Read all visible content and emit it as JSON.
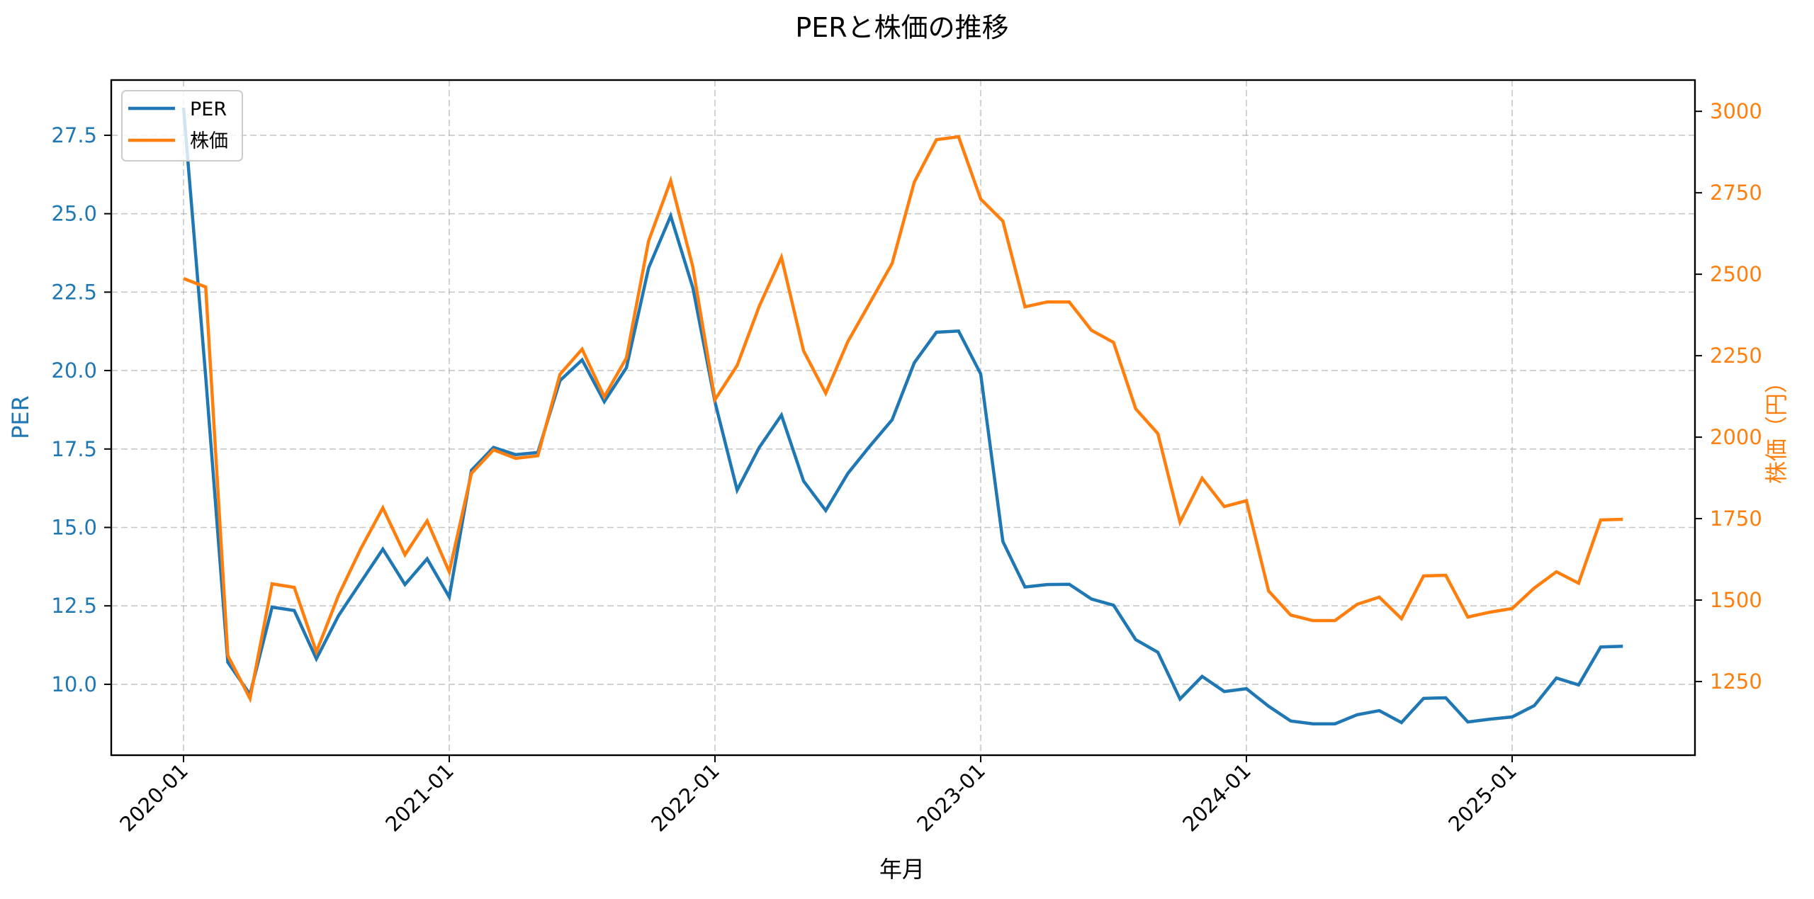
{
  "chart_data": {
    "type": "line",
    "title": "PERと株価の推移",
    "xlabel": "年月",
    "ylabel": "PER",
    "ylabel_right": "株価（円）",
    "grid": true,
    "legend_position": "upper left",
    "x": [
      "2020-01",
      "2020-02",
      "2020-03",
      "2020-04",
      "2020-05",
      "2020-06",
      "2020-07",
      "2020-08",
      "2020-09",
      "2020-10",
      "2020-11",
      "2020-12",
      "2021-01",
      "2021-02",
      "2021-03",
      "2021-04",
      "2021-05",
      "2021-06",
      "2021-07",
      "2021-08",
      "2021-09",
      "2021-10",
      "2021-11",
      "2021-12",
      "2022-01",
      "2022-02",
      "2022-03",
      "2022-04",
      "2022-05",
      "2022-06",
      "2022-07",
      "2022-08",
      "2022-09",
      "2022-10",
      "2022-11",
      "2022-12",
      "2023-01",
      "2023-02",
      "2023-03",
      "2023-04",
      "2023-05",
      "2023-06",
      "2023-07",
      "2023-08",
      "2023-09",
      "2023-10",
      "2023-11",
      "2023-12",
      "2024-01",
      "2024-02",
      "2024-03",
      "2024-04",
      "2024-05",
      "2024-06",
      "2024-07",
      "2024-08",
      "2024-09",
      "2024-10",
      "2024-11",
      "2024-12",
      "2025-01",
      "2025-02",
      "2025-03",
      "2025-04",
      "2025-05",
      "2025-06"
    ],
    "x_ticks": [
      "2020-01",
      "2021-01",
      "2022-01",
      "2023-01",
      "2024-01",
      "2025-01"
    ],
    "series": [
      {
        "name": "PER",
        "axis": "left",
        "color": "#1f77b4",
        "values": [
          28.38,
          19.8,
          10.7,
          9.68,
          12.46,
          12.35,
          10.81,
          12.19,
          13.25,
          14.31,
          13.18,
          14.0,
          12.78,
          16.82,
          17.55,
          17.32,
          17.39,
          19.68,
          20.34,
          19.01,
          20.09,
          23.27,
          24.93,
          22.64,
          19.0,
          16.19,
          17.55,
          18.58,
          16.48,
          15.54,
          16.72,
          17.6,
          18.43,
          20.25,
          21.22,
          21.26,
          19.89,
          14.55,
          13.1,
          13.18,
          13.19,
          12.72,
          12.52,
          11.42,
          11.02,
          9.53,
          10.25,
          9.77,
          9.86,
          9.3,
          8.83,
          8.74,
          8.74,
          9.03,
          9.16,
          8.78,
          9.55,
          9.57,
          8.8,
          8.89,
          8.96,
          9.32,
          10.2,
          9.98,
          11.19,
          11.21
        ]
      },
      {
        "name": "株価",
        "axis": "right",
        "color": "#ff7f0e",
        "values": [
          2487,
          2461,
          1330,
          1198,
          1550,
          1539,
          1341,
          1515,
          1657,
          1783,
          1639,
          1743,
          1587,
          1889,
          1961,
          1935,
          1943,
          2193,
          2270,
          2124,
          2243,
          2602,
          2787,
          2522,
          2115,
          2220,
          2402,
          2552,
          2265,
          2135,
          2293,
          2413,
          2533,
          2783,
          2913,
          2922,
          2731,
          2663,
          2400,
          2415,
          2415,
          2328,
          2291,
          2087,
          2011,
          1739,
          1874,
          1787,
          1805,
          1528,
          1454,
          1437,
          1437,
          1487,
          1509,
          1443,
          1574,
          1576,
          1448,
          1463,
          1474,
          1537,
          1587,
          1552,
          1746,
          1748
        ]
      }
    ],
    "ylim": [
      7.74,
      29.26
    ],
    "ylim_right": [
      1024,
      3096
    ],
    "yticks_left": [
      "10.0",
      "12.5",
      "15.0",
      "17.5",
      "20.0",
      "22.5",
      "25.0",
      "27.5"
    ],
    "yticks_right": [
      "1250",
      "1500",
      "1750",
      "2000",
      "2250",
      "2500",
      "2750",
      "3000"
    ]
  },
  "legend": {
    "items": [
      {
        "label": "PER",
        "color": "#1f77b4"
      },
      {
        "label": "株価",
        "color": "#ff7f0e"
      }
    ]
  }
}
